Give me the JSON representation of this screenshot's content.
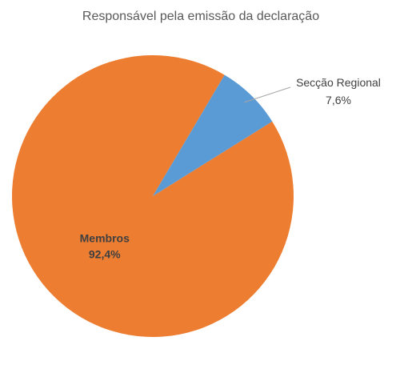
{
  "chart_data": {
    "type": "pie",
    "title": "Responsável pela emissão da declaração",
    "slices": [
      {
        "label": "Membros",
        "value": 92.4,
        "value_label": "92,4%",
        "color": "#ed7d31"
      },
      {
        "label": "Secção Regional",
        "value": 7.6,
        "value_label": "7,6%",
        "color": "#5b9bd5"
      }
    ],
    "unit": "%",
    "legend": "none"
  }
}
